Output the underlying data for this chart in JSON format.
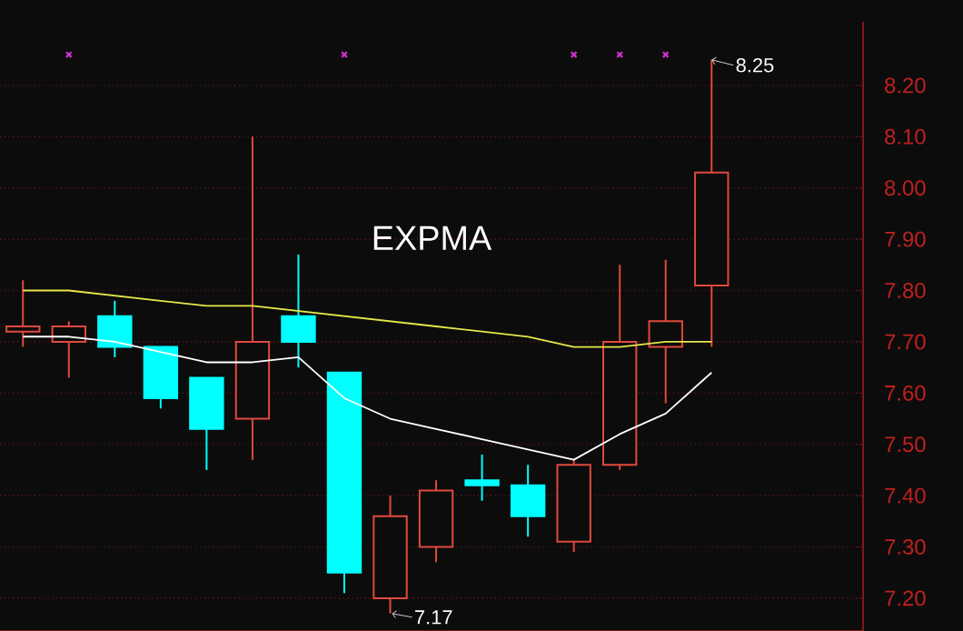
{
  "chart_data": {
    "type": "candlestick",
    "categories": [
      null,
      null,
      null,
      null,
      null,
      null,
      null,
      null,
      null,
      null,
      null,
      null,
      null,
      null,
      null,
      null
    ],
    "ohlc": [
      [
        7.72,
        7.82,
        7.69,
        7.73
      ],
      [
        7.7,
        7.74,
        7.63,
        7.73
      ],
      [
        7.75,
        7.78,
        7.67,
        7.69
      ],
      [
        7.69,
        7.69,
        7.57,
        7.59
      ],
      [
        7.63,
        7.63,
        7.45,
        7.53
      ],
      [
        7.55,
        8.1,
        7.47,
        7.7
      ],
      [
        7.75,
        7.87,
        7.65,
        7.7
      ],
      [
        7.64,
        7.64,
        7.21,
        7.25
      ],
      [
        7.2,
        7.4,
        7.17,
        7.36
      ],
      [
        7.3,
        7.43,
        7.27,
        7.41
      ],
      [
        7.43,
        7.48,
        7.39,
        7.42
      ],
      [
        7.42,
        7.46,
        7.32,
        7.36
      ],
      [
        7.31,
        7.47,
        7.29,
        7.46
      ],
      [
        7.46,
        7.85,
        7.45,
        7.7
      ],
      [
        7.69,
        7.86,
        7.58,
        7.74
      ],
      [
        7.81,
        8.25,
        7.69,
        8.03
      ]
    ],
    "colors": [
      "#e0493c",
      "#e0493c",
      "#00ffff",
      "#00ffff",
      "#00ffff",
      "#e0493c",
      "#00ffff",
      "#00ffff",
      "#e0493c",
      "#e0493c",
      "#00ffff",
      "#00ffff",
      "#e0493c",
      "#e0493c",
      "#e0493c",
      "#e0493c"
    ],
    "series": [
      {
        "type": "line",
        "color": "#e6e64a",
        "values": [
          7.8,
          7.8,
          7.79,
          7.78,
          7.77,
          7.77,
          7.76,
          7.75,
          7.74,
          7.73,
          7.72,
          7.71,
          7.69,
          7.69,
          7.7,
          7.7
        ]
      },
      {
        "type": "line",
        "color": "#ffffff",
        "values": [
          7.71,
          7.71,
          7.7,
          7.68,
          7.66,
          7.66,
          7.67,
          7.59,
          7.55,
          7.53,
          7.51,
          7.49,
          7.47,
          7.52,
          7.56,
          7.64
        ]
      },
      {
        "type": "scatter",
        "color": "#cc33cc",
        "marker": "cross",
        "values": [
          null,
          8.26,
          null,
          null,
          null,
          null,
          null,
          8.26,
          null,
          null,
          null,
          null,
          8.26,
          8.26,
          8.26,
          null
        ]
      }
    ],
    "ylim": [
      7.136,
      8.324
    ],
    "yticks": [
      {
        "value": 7.2,
        "label": "7.20"
      },
      {
        "value": 7.3,
        "label": "7.30"
      },
      {
        "value": 7.4,
        "label": "7.40"
      },
      {
        "value": 7.5,
        "label": "7.50"
      },
      {
        "value": 7.6,
        "label": "7.60"
      },
      {
        "value": 7.7,
        "label": "7.70"
      },
      {
        "value": 7.8,
        "label": "7.80"
      },
      {
        "value": 7.9,
        "label": "7.90"
      },
      {
        "value": 8.0,
        "label": "8.00"
      },
      {
        "value": 8.1,
        "label": "8.10"
      },
      {
        "value": 8.2,
        "label": "8.20"
      }
    ],
    "grid": "y",
    "tick_labels": "y",
    "annotations": [
      "EXPMA",
      "8.25",
      "7.17"
    ]
  }
}
